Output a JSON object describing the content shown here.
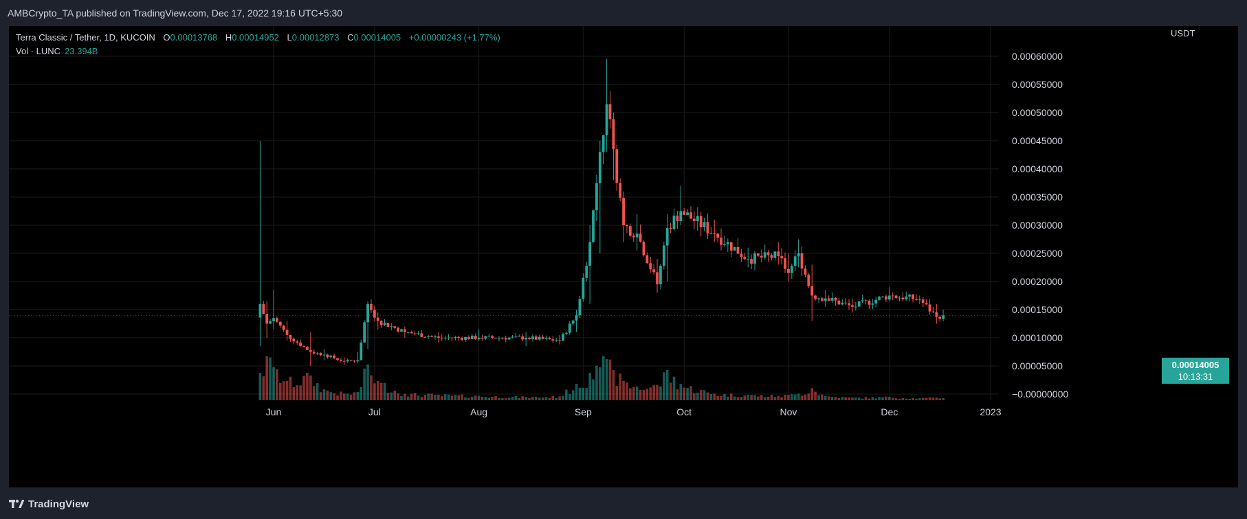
{
  "header": {
    "publish_text": "AMBCrypto_TA published on TradingView.com, Dec 17, 2022 19:16 UTC+5:30"
  },
  "legend": {
    "symbol": "Terra Classic / Tether, 1D, KUCOIN",
    "open_key": "O",
    "open": "0.00013768",
    "high_key": "H",
    "high": "0.00014952",
    "low_key": "L",
    "low": "0.00012873",
    "close_key": "C",
    "close": "0.00014005",
    "change": "+0.00000243 (+1.77%)",
    "volume_label": "Vol · LUNC",
    "volume_value": "23.394B"
  },
  "price_axis": {
    "currency": "USDT",
    "labels": [
      "0.00060000",
      "0.00055000",
      "0.00050000",
      "0.00045000",
      "0.00040000",
      "0.00035000",
      "0.00030000",
      "0.00025000",
      "0.00020000",
      "0.00015000",
      "0.00010000",
      "0.00005000",
      "−0.00000000"
    ]
  },
  "time_axis": {
    "labels": [
      "Jun",
      "Jul",
      "Aug",
      "Sep",
      "Oct",
      "Nov",
      "Dec",
      "2023"
    ]
  },
  "last_price": {
    "value": "0.00014005",
    "countdown": "10:13:31"
  },
  "footer": {
    "brand": "TradingView"
  },
  "colors": {
    "up": "#26a69a",
    "down": "#ef5350",
    "background": "#000000",
    "grid": "#1b1b1b"
  },
  "chart_data": {
    "type": "candlestick",
    "title": "Terra Classic / Tether, 1D, KUCOIN",
    "ylabel": "USDT",
    "ylim": [
      0,
      0.00063
    ],
    "grid": true,
    "keypoints": [
      {
        "date": "2022-05-28",
        "close": 0.00016,
        "high": 0.00045,
        "low": 8.5e-05,
        "vol": 0.5
      },
      {
        "date": "2022-05-30",
        "close": 0.000125,
        "high": 0.000165,
        "low": 0.0001,
        "vol": 0.8
      },
      {
        "date": "2022-06-01",
        "close": 0.000135,
        "high": 0.000185,
        "low": 0.000115,
        "vol": 0.6
      },
      {
        "date": "2022-06-05",
        "close": 0.000105,
        "high": 0.00013,
        "low": 9.5e-05,
        "vol": 0.35
      },
      {
        "date": "2022-06-12",
        "close": 7.5e-05,
        "high": 0.00011,
        "low": 5e-05,
        "vol": 0.45
      },
      {
        "date": "2022-06-16",
        "close": 7e-05,
        "high": 8e-05,
        "low": 6e-05,
        "vol": 0.2
      },
      {
        "date": "2022-06-22",
        "close": 5.8e-05,
        "high": 6.5e-05,
        "low": 5.2e-05,
        "vol": 0.12
      },
      {
        "date": "2022-06-26",
        "close": 6e-05,
        "high": 7.5e-05,
        "low": 5.5e-05,
        "vol": 0.15
      },
      {
        "date": "2022-06-29",
        "close": 0.00016,
        "high": 0.000165,
        "low": 8e-05,
        "vol": 0.65
      },
      {
        "date": "2022-07-02",
        "close": 0.00013,
        "high": 0.000145,
        "low": 0.000115,
        "vol": 0.35
      },
      {
        "date": "2022-07-10",
        "close": 0.00011,
        "high": 0.00012,
        "low": 0.0001,
        "vol": 0.12
      },
      {
        "date": "2022-07-20",
        "close": 0.0001,
        "high": 0.00011,
        "low": 9.2e-05,
        "vol": 0.1
      },
      {
        "date": "2022-08-01",
        "close": 0.0001,
        "high": 0.000115,
        "low": 9.5e-05,
        "vol": 0.08
      },
      {
        "date": "2022-08-15",
        "close": 0.0001,
        "high": 0.00011,
        "low": 8.5e-05,
        "vol": 0.06
      },
      {
        "date": "2022-08-25",
        "close": 9.5e-05,
        "high": 0.000105,
        "low": 8.8e-05,
        "vol": 0.07
      },
      {
        "date": "2022-08-30",
        "close": 0.00014,
        "high": 0.00015,
        "low": 0.00011,
        "vol": 0.3
      },
      {
        "date": "2022-09-03",
        "close": 0.00027,
        "high": 0.0003,
        "low": 0.00016,
        "vol": 0.5
      },
      {
        "date": "2022-09-06",
        "close": 0.00043,
        "high": 0.00045,
        "low": 0.00025,
        "vol": 0.6
      },
      {
        "date": "2022-09-08",
        "close": 0.000515,
        "high": 0.000595,
        "low": 0.00043,
        "vol": 0.75
      },
      {
        "date": "2022-09-10",
        "close": 0.000435,
        "high": 0.0005,
        "low": 0.00038,
        "vol": 0.55
      },
      {
        "date": "2022-09-13",
        "close": 0.0003,
        "high": 0.00036,
        "low": 0.00027,
        "vol": 0.35
      },
      {
        "date": "2022-09-17",
        "close": 0.000285,
        "high": 0.00032,
        "low": 0.000255,
        "vol": 0.25
      },
      {
        "date": "2022-09-23",
        "close": 0.000195,
        "high": 0.00024,
        "low": 0.00018,
        "vol": 0.28
      },
      {
        "date": "2022-09-26",
        "close": 0.000295,
        "high": 0.00032,
        "low": 0.0002,
        "vol": 0.55
      },
      {
        "date": "2022-09-30",
        "close": 0.000325,
        "high": 0.00037,
        "low": 0.0003,
        "vol": 0.3
      },
      {
        "date": "2022-10-10",
        "close": 0.000285,
        "high": 0.00031,
        "low": 0.00027,
        "vol": 0.12
      },
      {
        "date": "2022-10-20",
        "close": 0.00024,
        "high": 0.00026,
        "low": 0.000225,
        "vol": 0.1
      },
      {
        "date": "2022-10-29",
        "close": 0.000245,
        "high": 0.00027,
        "low": 0.00023,
        "vol": 0.08
      },
      {
        "date": "2022-11-01",
        "close": 0.000215,
        "high": 0.00025,
        "low": 0.0002,
        "vol": 0.1
      },
      {
        "date": "2022-11-04",
        "close": 0.00025,
        "high": 0.000275,
        "low": 0.000225,
        "vol": 0.12
      },
      {
        "date": "2022-11-08",
        "close": 0.000175,
        "high": 0.00023,
        "low": 0.00013,
        "vol": 0.22
      },
      {
        "date": "2022-11-12",
        "close": 0.00017,
        "high": 0.000185,
        "low": 0.000155,
        "vol": 0.08
      },
      {
        "date": "2022-11-20",
        "close": 0.000155,
        "high": 0.00017,
        "low": 0.000145,
        "vol": 0.05
      },
      {
        "date": "2022-12-01",
        "close": 0.000175,
        "high": 0.00019,
        "low": 0.000165,
        "vol": 0.06
      },
      {
        "date": "2022-12-10",
        "close": 0.000168,
        "high": 0.000175,
        "low": 0.00016,
        "vol": 0.04
      },
      {
        "date": "2022-12-15",
        "close": 0.000137,
        "high": 0.00016,
        "low": 0.000125,
        "vol": 0.05
      },
      {
        "date": "2022-12-17",
        "close": 0.00014,
        "high": 0.00015,
        "low": 0.000129,
        "vol": 0.04
      }
    ]
  }
}
